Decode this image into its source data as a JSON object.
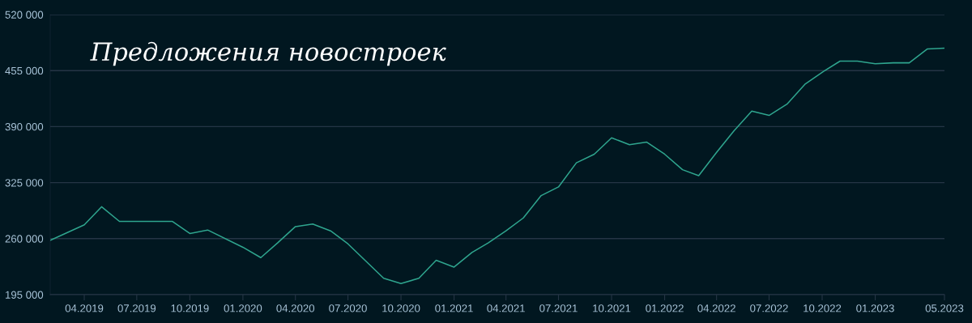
{
  "chart_data": {
    "type": "line",
    "title": "Предложения новостроек",
    "x": [
      "2019-02",
      "2019-04",
      "2019-05",
      "2019-06",
      "2019-09",
      "2019-10",
      "2019-11",
      "2020-01",
      "2020-02",
      "2020-03",
      "2020-04",
      "2020-05",
      "2020-06",
      "2020-07",
      "2020-09",
      "2020-10",
      "2020-11",
      "2020-12",
      "2021-01",
      "2021-02",
      "2021-03",
      "2021-04",
      "2021-05",
      "2021-06",
      "2021-07",
      "2021-08",
      "2021-09",
      "2021-10",
      "2021-11",
      "2021-12",
      "2022-01",
      "2022-02",
      "2022-03",
      "2022-04",
      "2022-05",
      "2022-06",
      "2022-07",
      "2022-08",
      "2022-09",
      "2022-10",
      "2022-11",
      "2022-12",
      "2023-01",
      "2023-02",
      "2023-03",
      "2023-04",
      "2023-05"
    ],
    "series": [
      {
        "color": "#2fa58e",
        "values": [
          258000,
          276000,
          297000,
          280000,
          280000,
          266000,
          270000,
          250000,
          238000,
          255000,
          274000,
          277000,
          269000,
          254000,
          214000,
          208000,
          214000,
          235000,
          227000,
          244000,
          255000,
          269000,
          284000,
          310000,
          320000,
          348000,
          358000,
          377000,
          369000,
          372000,
          358000,
          340000,
          333000,
          360000,
          385000,
          408000,
          403000,
          416000,
          439000,
          453000,
          466000,
          466000,
          463000,
          464000,
          464000,
          480000,
          481000
        ]
      }
    ],
    "xlim": [
      "2019-02",
      "2023-05"
    ],
    "xticks": [
      {
        "value": "2019-04",
        "label": "04.2019"
      },
      {
        "value": "2019-07",
        "label": "07.2019"
      },
      {
        "value": "2019-10",
        "label": "10.2019"
      },
      {
        "value": "2020-01",
        "label": "01.2020"
      },
      {
        "value": "2020-04",
        "label": "04.2020"
      },
      {
        "value": "2020-07",
        "label": "07.2020"
      },
      {
        "value": "2020-10",
        "label": "10.2020"
      },
      {
        "value": "2021-01",
        "label": "01.2021"
      },
      {
        "value": "2021-04",
        "label": "04.2021"
      },
      {
        "value": "2021-07",
        "label": "07.2021"
      },
      {
        "value": "2021-10",
        "label": "10.2021"
      },
      {
        "value": "2022-01",
        "label": "01.2022"
      },
      {
        "value": "2022-04",
        "label": "04.2022"
      },
      {
        "value": "2022-07",
        "label": "07.2022"
      },
      {
        "value": "2022-10",
        "label": "10.2022"
      },
      {
        "value": "2023-01",
        "label": "01.2023"
      },
      {
        "value": "2023-05",
        "label": "05.2023"
      }
    ],
    "ylim": [
      195000,
      520000
    ],
    "yticks": [
      {
        "value": 195000,
        "label": "195 000"
      },
      {
        "value": 260000,
        "label": "260 000"
      },
      {
        "value": 325000,
        "label": "325 000"
      },
      {
        "value": 390000,
        "label": "390 000"
      },
      {
        "value": 455000,
        "label": "455 000"
      },
      {
        "value": 520000,
        "label": "520 000"
      }
    ],
    "grid": "y",
    "marker": "none",
    "line_style": "solid"
  }
}
